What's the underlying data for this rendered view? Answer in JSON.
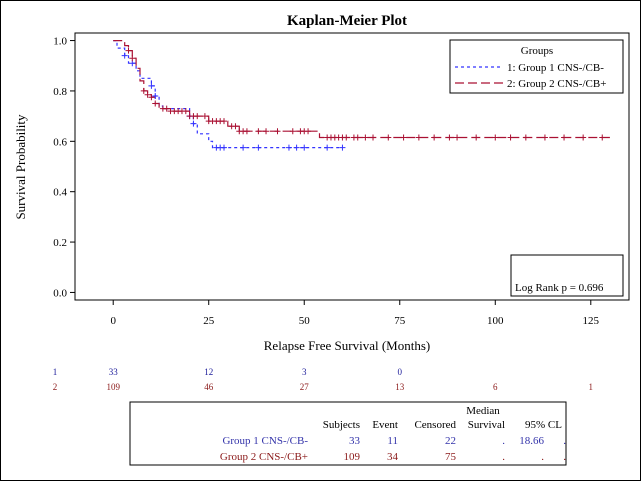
{
  "chart_data": {
    "type": "line",
    "title": "Kaplan-Meier Plot",
    "xlabel": "Relapse Free Survival (Months)",
    "ylabel": "Survival Probability",
    "xlim": [
      -10,
      135
    ],
    "ylim": [
      -0.03,
      1.03
    ],
    "xticks": [
      0,
      25,
      50,
      75,
      100,
      125
    ],
    "yticks": [
      0.0,
      0.2,
      0.4,
      0.6,
      0.8,
      1.0
    ],
    "legend": {
      "title": "Groups",
      "position": "top-right",
      "entries": [
        "1: Group 1 CNS-/CB-",
        "2: Group 2 CNS-/CB+"
      ]
    },
    "annotation": "Log Rank p =  0.696",
    "series": [
      {
        "name": "1: Group 1 CNS-/CB-",
        "color": "#3333ff",
        "dash": "dotted",
        "steps": [
          [
            0,
            1.0
          ],
          [
            1,
            0.97
          ],
          [
            3,
            0.94
          ],
          [
            4,
            0.91
          ],
          [
            6,
            0.88
          ],
          [
            7,
            0.85
          ],
          [
            9,
            0.85
          ],
          [
            10,
            0.82
          ],
          [
            11,
            0.78
          ],
          [
            12,
            0.74
          ],
          [
            13,
            0.73
          ],
          [
            20,
            0.7
          ],
          [
            21,
            0.67
          ],
          [
            22,
            0.63
          ],
          [
            25,
            0.6
          ],
          [
            26,
            0.575
          ],
          [
            60,
            0.575
          ]
        ],
        "censored": [
          3,
          5,
          10,
          11,
          20,
          21,
          27,
          28,
          29,
          34,
          38,
          46,
          48,
          50,
          56,
          60
        ]
      },
      {
        "name": "2: Group 2 CNS-/CB+",
        "color": "#aa1133",
        "dash": "dashed",
        "steps": [
          [
            0,
            1.0
          ],
          [
            2,
            1.0
          ],
          [
            3,
            0.98
          ],
          [
            4,
            0.96
          ],
          [
            5,
            0.93
          ],
          [
            6,
            0.89
          ],
          [
            7,
            0.84
          ],
          [
            8,
            0.8
          ],
          [
            9,
            0.785
          ],
          [
            10,
            0.775
          ],
          [
            11,
            0.75
          ],
          [
            12,
            0.73
          ],
          [
            15,
            0.72
          ],
          [
            20,
            0.7
          ],
          [
            25,
            0.68
          ],
          [
            30,
            0.66
          ],
          [
            33,
            0.64
          ],
          [
            54,
            0.615
          ],
          [
            130,
            0.615
          ]
        ],
        "censored": [
          4,
          5,
          8,
          9,
          10,
          11,
          13,
          14,
          15,
          16,
          17,
          18,
          19,
          20,
          21,
          22,
          24,
          25,
          26,
          27,
          28,
          29,
          31,
          32,
          33,
          34,
          35,
          38,
          40,
          43,
          47,
          49,
          50,
          51,
          56,
          57,
          58,
          59,
          60,
          61,
          63,
          64,
          66,
          68,
          72,
          76,
          80,
          84,
          88,
          90,
          95,
          100,
          104,
          108,
          113,
          118,
          123,
          128
        ]
      }
    ],
    "at_risk": {
      "times": [
        0,
        25,
        50,
        75,
        100,
        125
      ],
      "groups": [
        {
          "label": "1",
          "color": "#1a1a99",
          "counts": [
            "33",
            "12",
            "3",
            "0",
            "",
            ""
          ]
        },
        {
          "label": "2",
          "color": "#8b1a1a",
          "counts": [
            "109",
            "46",
            "27",
            "13",
            "6",
            "1"
          ]
        }
      ]
    }
  },
  "summary_table": {
    "header_top": "Median",
    "headers": [
      "Subjects",
      "Event",
      "Censored",
      "Survival",
      "95%  CL"
    ],
    "rows": [
      {
        "name": "Group 1 CNS-/CB-",
        "color": "#3333aa",
        "subjects": "33",
        "event": "11",
        "censored": "22",
        "median": ".",
        "cl_low": "18.66",
        "cl_high": "."
      },
      {
        "name": "Group 2 CNS-/CB+",
        "color": "#8b1a1a",
        "subjects": "109",
        "event": "34",
        "censored": "75",
        "median": ".",
        "cl_low": ".",
        "cl_high": "."
      }
    ]
  }
}
